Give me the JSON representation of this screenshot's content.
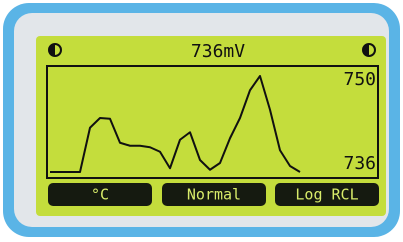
{
  "header": {
    "reading": "736mV"
  },
  "chart_data": {
    "type": "line",
    "values": [
      736.4,
      736.4,
      736.4,
      736.4,
      742.3,
      743.6,
      743.5,
      740.3,
      739.9,
      739.9,
      739.7,
      739.1,
      736.9,
      740.7,
      741.7,
      738.0,
      736.7,
      737.6,
      740.9,
      743.6,
      747.3,
      749.2,
      744.7,
      739.3,
      737.2,
      736.4
    ],
    "color": "#111111",
    "ylim": [
      736,
      750
    ],
    "yticks": [
      736,
      750
    ]
  },
  "softkeys": [
    "°C",
    "Normal",
    "Log RCL"
  ]
}
